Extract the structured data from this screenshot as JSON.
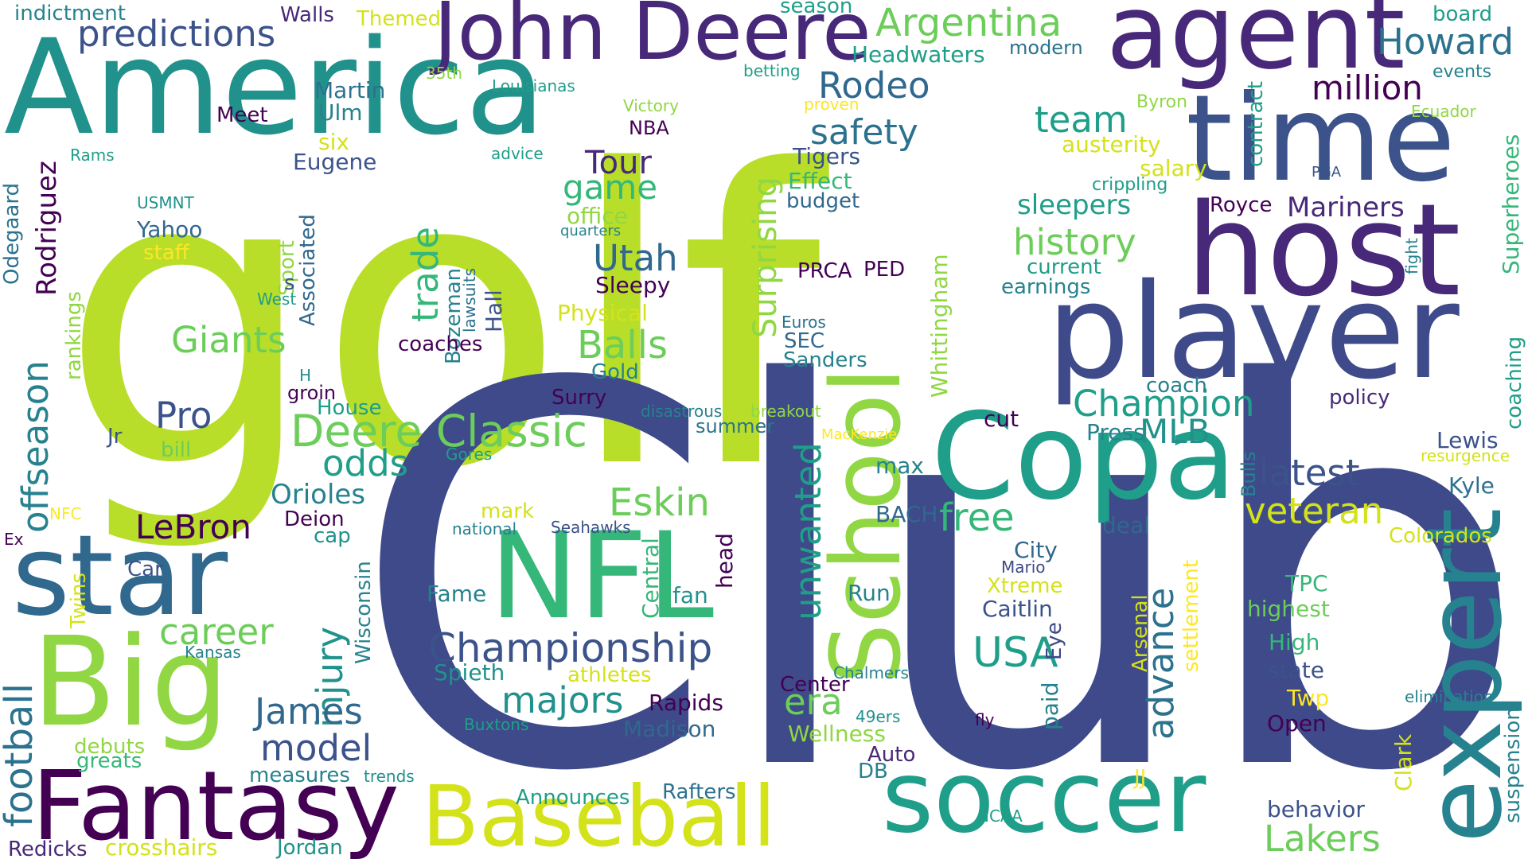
{
  "words": {
    "golf": "golf",
    "club": "Club",
    "america": "America",
    "john_deere": "John Deere",
    "agent": "agent",
    "time": "time",
    "host": "host",
    "player": "player",
    "school": "School",
    "copa": "Copa",
    "expert": "expert",
    "soccer": "soccer",
    "baseball": "Baseball",
    "fantasy": "Fantasy",
    "big": "Big",
    "star": "star",
    "nfl": "NFL",
    "championship": "Championship",
    "deere_classic": "Deere Classic",
    "argentina": "Argentina",
    "howard": "Howard",
    "million": "million",
    "predictions": "predictions",
    "indictment": "indictment",
    "walls": "Walls",
    "themed": "Themed",
    "season": "season",
    "headwaters": "Headwaters",
    "modern": "modern",
    "board": "board",
    "events": "events",
    "rodeo": "Rodeo",
    "team": "team",
    "safety": "safety",
    "tour": "Tour",
    "game": "game",
    "office": "office",
    "utah": "Utah",
    "sleepy": "Sleepy",
    "trade": "trade",
    "giants": "Giants",
    "pro": "Pro",
    "martin": "Martin",
    "ulm": "Ulm",
    "meet": "Meet",
    "eugene": "Eugene",
    "six": "six",
    "rodriguez": "Rodriguez",
    "odegaard": "Odegaard",
    "offseason": "offseason",
    "football": "football",
    "rankings": "rankings",
    "usmnt": "USMNT",
    "yahoo": "Yahoo",
    "staff": "staff",
    "rams": "Rams",
    "sport": "Sport",
    "s": "s",
    "west": "West",
    "associated": "Associated",
    "bozeman": "Bozeman",
    "lawsuits": "lawsuits",
    "hall": "Hall",
    "coaches": "coaches",
    "physical": "Physical",
    "balls": "Balls",
    "gold": "Gold",
    "surry": "Surry",
    "groin": "groin",
    "h": "H",
    "house": "House",
    "jr": "Jr",
    "bill": "bill",
    "odds": "odds",
    "orioles": "Orioles",
    "lebron": "LeBron",
    "deion": "Deion",
    "cap": "cap",
    "car": "Car",
    "twins": "Twins",
    "ex": "Ex",
    "nfc": "NFC",
    "career": "career",
    "kansas": "Kansas",
    "injury": "injury",
    "wisconsin": "Wisconsin",
    "james": "James",
    "model": "model",
    "debuts": "debuts",
    "greats": "greats",
    "measures": "measures",
    "trends": "trends",
    "redicks": "Redicks",
    "crosshairs": "crosshairs",
    "jordan": "Jordan",
    "announces": "Announces",
    "rafters": "Rafters",
    "eskin": "Eskin",
    "mark": "mark",
    "national": "national",
    "seahawks": "Seahawks",
    "fame": "Fame",
    "central": "Central",
    "fan": "fan",
    "head": "head",
    "spieth": "Spieth",
    "athletes": "athletes",
    "majors": "majors",
    "rapids": "Rapids",
    "madison": "Madison",
    "buxtons": "Buxtons",
    "louisianas": "Louisianas",
    "35th": "35th",
    "victory": "Victory",
    "nba": "NBA",
    "advice": "advice",
    "betting": "betting",
    "proven": "proven",
    "surprising": "Surprising",
    "tigers": "Tigers",
    "effect": "Effect",
    "budget": "budget",
    "quarters": "quarters",
    "unwanted": "unwanted",
    "prca": "PRCA",
    "ped": "PED",
    "euros": "Euros",
    "sec": "SEC",
    "sanders": "Sanders",
    "disastrous": "disastrous",
    "breakout": "breakout",
    "summer": "summer",
    "gores": "Gores",
    "mackenzie": "MacKenzie",
    "era": "era",
    "center": "Center",
    "wellness": "Wellness",
    "auto": "Auto",
    "db": "DB",
    "49ers": "49ers",
    "chalmers": "Chalmers",
    "run": "Run",
    "max": "max",
    "bach": "BACH",
    "whittingham": "Whittingham",
    "cut": "cut",
    "free": "free",
    "city": "City",
    "mario": "Mario",
    "xtreme": "Xtreme",
    "caitlin": "Caitlin",
    "usa": "USA",
    "eye": "Eye",
    "paid": "paid",
    "fly": "fly",
    "ncaa": "NCAA",
    "jj": "JJ",
    "champion": "Champion",
    "coach": "coach",
    "press": "Press",
    "mlb": "MLB",
    "latest": "latest",
    "veteran": "veteran",
    "deal": "deal",
    "advance": "advance",
    "arsenal": "Arsenal",
    "settlement": "settlement",
    "bulls": "Bulls",
    "clark": "Clark",
    "history": "history",
    "current": "current",
    "earnings": "earnings",
    "sleepers": "sleepers",
    "royce": "Royce",
    "mariners": "Mariners",
    "salary": "salary",
    "crippling": "crippling",
    "austerity": "austerity",
    "contract": "contract",
    "byron": "Byron",
    "pga": "PGA",
    "ecuador": "Ecuador",
    "fight": "fight",
    "superheroes": "Superheroes",
    "coaching": "coaching",
    "policy": "policy",
    "lewis": "Lewis",
    "resurgence": "resurgence",
    "kyle": "Kyle",
    "colorados": "Colorados",
    "tpc": "TPC",
    "highest": "highest",
    "high": "High",
    "state": "state",
    "twp": "Twp",
    "open": "Open",
    "behavior": "behavior",
    "lakers": "Lakers",
    "elimination": "elimination",
    "suspension": "suspension"
  }
}
